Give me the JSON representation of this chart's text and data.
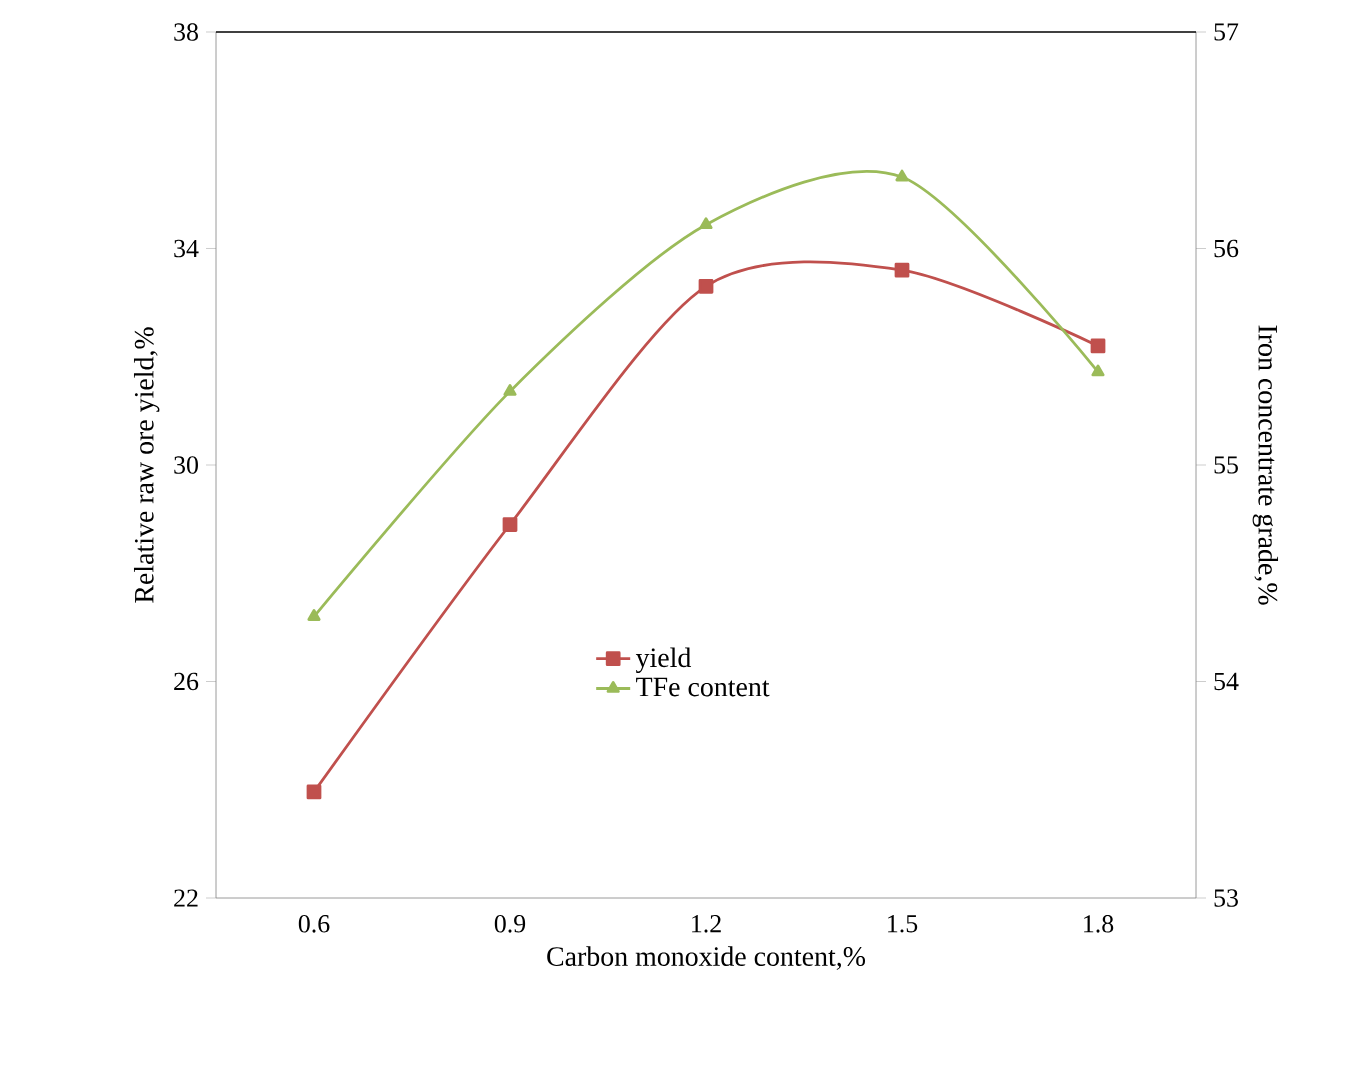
{
  "chart_data": {
    "type": "line",
    "xlabel": "Carbon monoxide content,%",
    "ylabel": "Relative raw ore yield,%",
    "y2label": "Iron concentrate grade,%",
    "categories": [
      "0.6",
      "0.9",
      "1.2",
      "1.5",
      "1.8"
    ],
    "series": [
      {
        "name": "yield",
        "color": "#c0504d",
        "marker": "square",
        "values": [
          23.96,
          28.9,
          33.3,
          33.6,
          32.2
        ]
      },
      {
        "name": "TFe content",
        "color": "#9bbb59",
        "marker": "triangle",
        "axis": "y2",
        "values": [
          54.3,
          55.34,
          56.11,
          56.33,
          55.43
        ]
      }
    ],
    "ylim": [
      22,
      38
    ],
    "yticks": [
      22,
      26,
      30,
      34,
      38
    ],
    "y2lim": [
      53,
      57
    ],
    "y2ticks": [
      53,
      54,
      55,
      56,
      57
    ],
    "grid": false,
    "legend": "center",
    "line_style": "solid"
  }
}
